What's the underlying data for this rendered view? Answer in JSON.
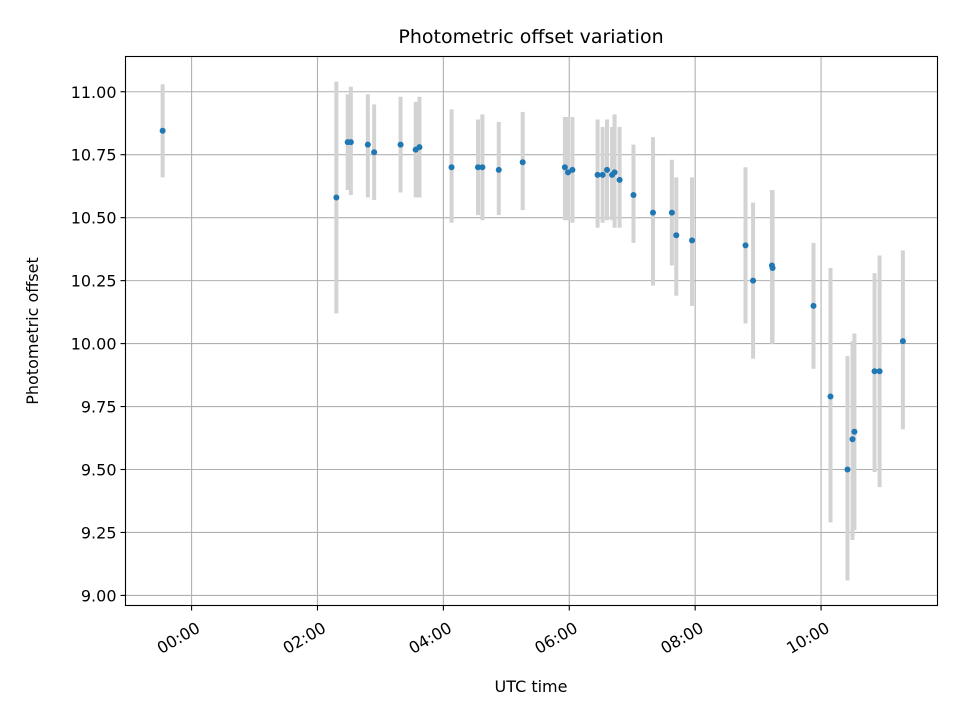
{
  "chart_data": {
    "type": "scatter",
    "title": "Photometric offset variation",
    "xlabel": "UTC time",
    "ylabel": "Photometric offset",
    "x_unit": "hours",
    "xlim": [
      -1.05,
      11.85
    ],
    "ylim": [
      8.96,
      11.14
    ],
    "x_ticks": [
      0,
      2,
      4,
      6,
      8,
      10
    ],
    "x_tick_labels": [
      "00:00",
      "02:00",
      "04:00",
      "06:00",
      "08:00",
      "10:00"
    ],
    "y_ticks": [
      9.0,
      9.25,
      9.5,
      9.75,
      10.0,
      10.25,
      10.5,
      10.75,
      11.0
    ],
    "y_tick_labels": [
      "9.00",
      "9.25",
      "9.50",
      "9.75",
      "10.00",
      "10.25",
      "10.50",
      "10.75",
      "11.00"
    ],
    "grid": true,
    "marker_color": "#1f77b4",
    "errorbar_color": "#d3d3d3",
    "series": [
      {
        "points": [
          {
            "x": -0.46,
            "y": 10.845,
            "lo": 10.66,
            "hi": 11.03
          },
          {
            "x": 2.3,
            "y": 10.58,
            "lo": 10.12,
            "hi": 11.04
          },
          {
            "x": 2.48,
            "y": 10.8,
            "lo": 10.61,
            "hi": 10.99
          },
          {
            "x": 2.53,
            "y": 10.8,
            "lo": 10.59,
            "hi": 11.02
          },
          {
            "x": 2.8,
            "y": 10.79,
            "lo": 10.58,
            "hi": 10.99
          },
          {
            "x": 2.9,
            "y": 10.76,
            "lo": 10.57,
            "hi": 10.95
          },
          {
            "x": 3.32,
            "y": 10.79,
            "lo": 10.6,
            "hi": 10.98
          },
          {
            "x": 3.56,
            "y": 10.77,
            "lo": 10.58,
            "hi": 10.96
          },
          {
            "x": 3.62,
            "y": 10.78,
            "lo": 10.58,
            "hi": 10.98
          },
          {
            "x": 4.13,
            "y": 10.7,
            "lo": 10.48,
            "hi": 10.93
          },
          {
            "x": 4.55,
            "y": 10.7,
            "lo": 10.51,
            "hi": 10.89
          },
          {
            "x": 4.62,
            "y": 10.7,
            "lo": 10.49,
            "hi": 10.91
          },
          {
            "x": 4.88,
            "y": 10.69,
            "lo": 10.51,
            "hi": 10.88
          },
          {
            "x": 5.26,
            "y": 10.72,
            "lo": 10.53,
            "hi": 10.92
          },
          {
            "x": 5.93,
            "y": 10.7,
            "lo": 10.49,
            "hi": 10.9
          },
          {
            "x": 5.98,
            "y": 10.68,
            "lo": 10.49,
            "hi": 10.9
          },
          {
            "x": 6.05,
            "y": 10.69,
            "lo": 10.48,
            "hi": 10.9
          },
          {
            "x": 6.45,
            "y": 10.67,
            "lo": 10.46,
            "hi": 10.89
          },
          {
            "x": 6.53,
            "y": 10.67,
            "lo": 10.48,
            "hi": 10.86
          },
          {
            "x": 6.6,
            "y": 10.69,
            "lo": 10.49,
            "hi": 10.89
          },
          {
            "x": 6.68,
            "y": 10.67,
            "lo": 10.49,
            "hi": 10.86
          },
          {
            "x": 6.72,
            "y": 10.68,
            "lo": 10.46,
            "hi": 10.91
          },
          {
            "x": 6.8,
            "y": 10.65,
            "lo": 10.46,
            "hi": 10.86
          },
          {
            "x": 7.02,
            "y": 10.59,
            "lo": 10.4,
            "hi": 10.79
          },
          {
            "x": 7.33,
            "y": 10.52,
            "lo": 10.23,
            "hi": 10.82
          },
          {
            "x": 7.63,
            "y": 10.52,
            "lo": 10.31,
            "hi": 10.73
          },
          {
            "x": 7.7,
            "y": 10.43,
            "lo": 10.19,
            "hi": 10.66
          },
          {
            "x": 7.95,
            "y": 10.41,
            "lo": 10.15,
            "hi": 10.66
          },
          {
            "x": 8.8,
            "y": 10.39,
            "lo": 10.08,
            "hi": 10.7
          },
          {
            "x": 8.92,
            "y": 10.25,
            "lo": 9.94,
            "hi": 10.56
          },
          {
            "x": 9.22,
            "y": 10.31,
            "lo": 10.0,
            "hi": 10.61
          },
          {
            "x": 9.23,
            "y": 10.3,
            "lo": 10.0,
            "hi": 10.61
          },
          {
            "x": 9.88,
            "y": 10.15,
            "lo": 9.9,
            "hi": 10.4
          },
          {
            "x": 10.15,
            "y": 9.79,
            "lo": 9.29,
            "hi": 10.3
          },
          {
            "x": 10.42,
            "y": 9.5,
            "lo": 9.06,
            "hi": 9.95
          },
          {
            "x": 10.5,
            "y": 9.62,
            "lo": 9.22,
            "hi": 10.01
          },
          {
            "x": 10.53,
            "y": 9.65,
            "lo": 9.26,
            "hi": 10.04
          },
          {
            "x": 10.85,
            "y": 9.89,
            "lo": 9.49,
            "hi": 10.28
          },
          {
            "x": 10.93,
            "y": 9.89,
            "lo": 9.43,
            "hi": 10.35
          },
          {
            "x": 11.3,
            "y": 10.01,
            "lo": 9.66,
            "hi": 10.37
          }
        ]
      }
    ]
  }
}
